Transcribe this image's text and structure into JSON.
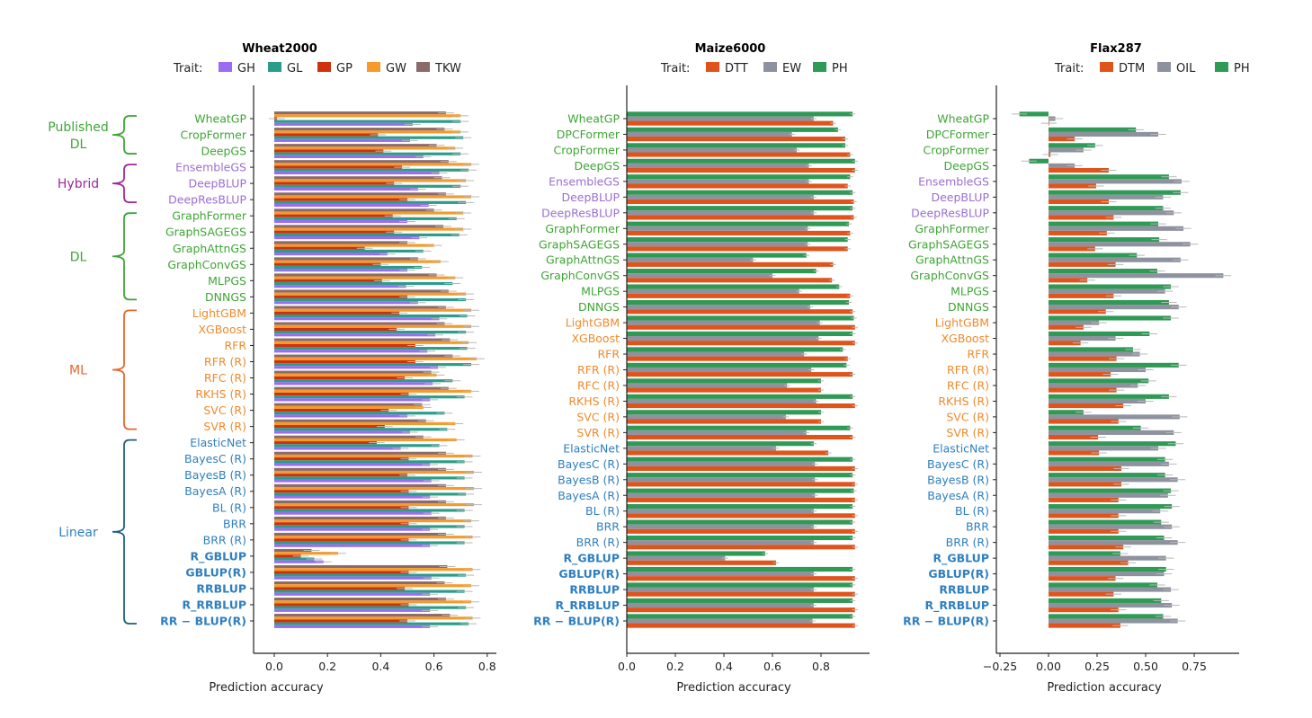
{
  "chart_data": [
    {
      "type": "bar",
      "orientation": "horizontal",
      "title": "Wheat2000",
      "legend_title": "Trait:",
      "legend_position": "top",
      "xlabel": "Prediction accuracy",
      "ylabel": "",
      "xlim": [
        -0.08,
        0.83
      ],
      "xticks": [
        0.0,
        0.2,
        0.4,
        0.6,
        0.8
      ],
      "xtick_labels": [
        "0.0",
        "0.2",
        "0.4",
        "0.6",
        "0.8"
      ],
      "grid": false,
      "categories": [
        "WheatGP",
        "CropFormer",
        "DeepGS",
        "EnsembleGS",
        "DeepBLUP",
        "DeepResBLUP",
        "GraphFormer",
        "GraphSAGEGS",
        "GraphAttnGS",
        "GraphConvGS",
        "MLPGS",
        "DNNGS",
        "LightGBM",
        "XGBoost",
        "RFR",
        "RFR (R)",
        "RFC (R)",
        "RKHS (R)",
        "SVC (R)",
        "SVR (R)",
        "ElasticNet",
        "BayesC (R)",
        "BayesB (R)",
        "BayesA (R)",
        "BL (R)",
        "BRR",
        "BRR (R)",
        "R_GBLUP",
        "GBLUP(R)",
        "RRBLUP",
        "R_RRBLUP",
        "RR − BLUP(R)"
      ],
      "category_groups": [
        "pub",
        "pub",
        "pub",
        "hyb",
        "hyb",
        "hyb",
        "dl",
        "dl",
        "dl",
        "dl",
        "dl",
        "dl",
        "ml",
        "ml",
        "ml",
        "ml",
        "ml",
        "ml",
        "ml",
        "ml",
        "lin",
        "lin",
        "lin",
        "lin",
        "lin",
        "lin",
        "lin",
        "linb",
        "linb",
        "linb",
        "linb",
        "linb"
      ],
      "series": [
        {
          "name": "GH",
          "color": "#9b6cf2",
          "values": [
            0.52,
            0.51,
            0.56,
            0.62,
            0.54,
            0.58,
            0.5,
            0.545,
            0.425,
            0.5,
            0.495,
            0.54,
            0.62,
            0.605,
            0.575,
            0.615,
            0.595,
            0.585,
            0.5,
            0.51,
            0.475,
            0.585,
            0.59,
            0.585,
            0.59,
            0.585,
            0.585,
            0.185,
            0.59,
            0.585,
            0.585,
            0.585
          ]
        },
        {
          "name": "GL",
          "color": "#2a9d8a",
          "values": [
            0.7,
            0.71,
            0.7,
            0.73,
            0.7,
            0.72,
            0.685,
            0.695,
            0.56,
            0.555,
            0.67,
            0.72,
            0.725,
            0.72,
            0.725,
            0.74,
            0.67,
            0.715,
            0.64,
            0.65,
            0.62,
            0.715,
            0.715,
            0.72,
            0.715,
            0.715,
            0.715,
            0.15,
            0.72,
            0.715,
            0.72,
            0.73
          ]
        },
        {
          "name": "GP",
          "color": "#d1300f",
          "values": [
            0.01,
            0.39,
            0.41,
            0.48,
            0.45,
            0.5,
            0.445,
            0.45,
            0.34,
            0.4,
            0.405,
            0.5,
            0.47,
            0.46,
            0.53,
            0.53,
            0.49,
            0.505,
            0.43,
            0.415,
            0.385,
            0.505,
            0.5,
            0.505,
            0.505,
            0.505,
            0.505,
            0.1,
            0.505,
            0.49,
            0.505,
            0.5
          ]
        },
        {
          "name": "GW",
          "color": "#f59a2b",
          "values": [
            0.7,
            0.7,
            0.68,
            0.74,
            0.72,
            0.74,
            0.71,
            0.71,
            0.6,
            0.625,
            0.68,
            0.72,
            0.74,
            0.74,
            0.73,
            0.76,
            0.61,
            0.74,
            0.56,
            0.68,
            0.685,
            0.745,
            0.75,
            0.75,
            0.75,
            0.74,
            0.745,
            0.24,
            0.745,
            0.74,
            0.74,
            0.745
          ]
        },
        {
          "name": "TKW",
          "color": "#8b6b6a",
          "values": [
            0.645,
            0.64,
            0.61,
            0.655,
            0.63,
            0.645,
            0.6,
            0.635,
            0.5,
            0.54,
            0.61,
            0.655,
            0.645,
            0.64,
            0.66,
            0.67,
            0.59,
            0.655,
            0.555,
            0.57,
            0.56,
            0.645,
            0.645,
            0.645,
            0.645,
            0.645,
            0.645,
            0.14,
            0.65,
            0.64,
            0.645,
            0.66
          ]
        }
      ],
      "bar_order_top_to_bottom": [
        "TKW",
        "GW",
        "GP",
        "GL",
        "GH"
      ],
      "error_bars": "small grey whiskers (~±0.03) on each bar"
    },
    {
      "type": "bar",
      "orientation": "horizontal",
      "title": "Maize6000",
      "legend_title": "Trait:",
      "legend_position": "top",
      "xlabel": "Prediction accuracy",
      "ylabel": "",
      "xlim": [
        0.0,
        1.0
      ],
      "xticks": [
        0.0,
        0.2,
        0.4,
        0.6,
        0.8
      ],
      "xtick_labels": [
        "0.0",
        "0.2",
        "0.4",
        "0.6",
        "0.8"
      ],
      "grid": false,
      "categories": [
        "WheatGP",
        "DPCFormer",
        "CropFormer",
        "DeepGS",
        "EnsembleGS",
        "DeepBLUP",
        "DeepResBLUP",
        "GraphFormer",
        "GraphSAGEGS",
        "GraphAttnGS",
        "GraphConvGS",
        "MLPGS",
        "DNNGS",
        "LightGBM",
        "XGBoost",
        "RFR",
        "RFR (R)",
        "RFC (R)",
        "RKHS (R)",
        "SVC (R)",
        "SVR (R)",
        "ElasticNet",
        "BayesC (R)",
        "BayesB (R)",
        "BayesA (R)",
        "BL (R)",
        "BRR",
        "BRR (R)",
        "R_GBLUP",
        "GBLUP(R)",
        "RRBLUP",
        "R_RRBLUP",
        "RR − BLUP(R)"
      ],
      "category_groups": [
        "pub",
        "pub",
        "pub",
        "pub",
        "hyb",
        "hyb",
        "hyb",
        "dl",
        "dl",
        "dl",
        "dl",
        "dl",
        "dl",
        "ml",
        "ml",
        "ml",
        "ml",
        "ml",
        "ml",
        "ml",
        "ml",
        "lin",
        "lin",
        "lin",
        "lin",
        "lin",
        "lin",
        "lin",
        "linb",
        "linb",
        "linb",
        "linb",
        "linb"
      ],
      "series": [
        {
          "name": "DTT",
          "color": "#e0531b",
          "values": [
            0.85,
            0.9,
            0.92,
            0.94,
            0.91,
            0.935,
            0.935,
            0.92,
            0.91,
            0.85,
            0.845,
            0.92,
            0.93,
            0.94,
            0.94,
            0.91,
            0.93,
            0.8,
            0.94,
            0.8,
            0.93,
            0.83,
            0.94,
            0.94,
            0.94,
            0.94,
            0.94,
            0.94,
            0.615,
            0.94,
            0.94,
            0.94,
            0.94
          ]
        },
        {
          "name": "EW",
          "color": "#8e929e",
          "values": [
            0.77,
            0.68,
            0.7,
            0.75,
            0.75,
            0.77,
            0.77,
            0.745,
            0.745,
            0.52,
            0.6,
            0.71,
            0.755,
            0.795,
            0.79,
            0.73,
            0.76,
            0.66,
            0.78,
            0.655,
            0.74,
            0.615,
            0.775,
            0.775,
            0.775,
            0.77,
            0.77,
            0.77,
            0.405,
            0.77,
            0.77,
            0.77,
            0.765
          ]
        },
        {
          "name": "PH",
          "color": "#2e9a55",
          "values": [
            0.93,
            0.87,
            0.9,
            0.94,
            0.92,
            0.93,
            0.93,
            0.915,
            0.91,
            0.74,
            0.78,
            0.875,
            0.915,
            0.935,
            0.93,
            0.89,
            0.905,
            0.8,
            0.93,
            0.8,
            0.92,
            0.77,
            0.93,
            0.93,
            0.935,
            0.93,
            0.93,
            0.93,
            0.57,
            0.93,
            0.93,
            0.93,
            0.93
          ]
        }
      ],
      "bar_order_top_to_bottom": [
        "PH",
        "EW",
        "DTT"
      ],
      "error_bars": "small grey whiskers (~±0.01) on each bar"
    },
    {
      "type": "bar",
      "orientation": "horizontal",
      "title": "Flax287",
      "legend_title": "Trait:",
      "legend_position": "top",
      "xlabel": "Prediction accuracy",
      "ylabel": "",
      "xlim": [
        -0.27,
        0.98
      ],
      "xticks": [
        -0.25,
        0.0,
        0.25,
        0.5,
        0.75
      ],
      "xtick_labels": [
        "−0.25",
        "0.00",
        "0.25",
        "0.50",
        "0.75"
      ],
      "grid": false,
      "categories": [
        "WheatGP",
        "DPCFormer",
        "CropFormer",
        "DeepGS",
        "EnsembleGS",
        "DeepBLUP",
        "DeepResBLUP",
        "GraphFormer",
        "GraphSAGEGS",
        "GraphAttnGS",
        "GraphConvGS",
        "MLPGS",
        "DNNGS",
        "LightGBM",
        "XGBoost",
        "RFR",
        "RFR (R)",
        "RFC (R)",
        "RKHS (R)",
        "SVC (R)",
        "SVR (R)",
        "ElasticNet",
        "BayesC (R)",
        "BayesB (R)",
        "BayesA (R)",
        "BL (R)",
        "BRR",
        "BRR (R)",
        "R_GBLUP",
        "GBLUP(R)",
        "RRBLUP",
        "R_RRBLUP",
        "RR − BLUP(R)"
      ],
      "category_groups": [
        "pub",
        "pub",
        "pub",
        "pub",
        "hyb",
        "hyb",
        "hyb",
        "dl",
        "dl",
        "dl",
        "dl",
        "dl",
        "dl",
        "ml",
        "ml",
        "ml",
        "ml",
        "ml",
        "ml",
        "ml",
        "ml",
        "lin",
        "lin",
        "lin",
        "lin",
        "lin",
        "lin",
        "lin",
        "linb",
        "linb",
        "linb",
        "linb",
        "linb"
      ],
      "series": [
        {
          "name": "DTM",
          "color": "#e0531b",
          "values": [
            0.002,
            0.135,
            0.01,
            0.31,
            0.245,
            0.31,
            0.335,
            0.3,
            0.24,
            0.345,
            0.2,
            0.335,
            0.295,
            0.18,
            0.165,
            0.35,
            0.32,
            0.35,
            0.385,
            0.36,
            0.255,
            0.26,
            0.375,
            0.375,
            0.36,
            0.36,
            0.36,
            0.385,
            0.41,
            0.345,
            0.335,
            0.36,
            0.37
          ]
        },
        {
          "name": "OIL",
          "color": "#8e929e",
          "values": [
            0.035,
            0.565,
            0.18,
            0.135,
            0.685,
            0.59,
            0.645,
            0.695,
            0.73,
            0.68,
            0.9,
            0.6,
            0.67,
            0.26,
            0.345,
            0.47,
            0.5,
            0.46,
            0.5,
            0.675,
            0.645,
            0.565,
            0.62,
            0.665,
            0.615,
            0.575,
            0.635,
            0.665,
            0.605,
            0.595,
            0.63,
            0.635,
            0.665
          ]
        },
        {
          "name": "PH",
          "color": "#2e9a55",
          "values": [
            -0.15,
            0.45,
            0.24,
            -0.1,
            0.62,
            0.68,
            0.59,
            0.565,
            0.57,
            0.455,
            0.56,
            0.63,
            0.62,
            0.63,
            0.52,
            0.435,
            0.67,
            0.515,
            0.62,
            0.18,
            0.475,
            0.655,
            0.6,
            0.6,
            0.63,
            0.635,
            0.58,
            0.595,
            0.37,
            0.605,
            0.56,
            0.58,
            0.59
          ]
        }
      ],
      "bar_order_top_to_bottom": [
        "PH",
        "OIL",
        "DTM"
      ],
      "error_bars": "small grey whiskers (~±0.04) on each bar"
    }
  ],
  "groups": {
    "pub": {
      "color": "#3fa535",
      "bold": false
    },
    "hyb": {
      "color": "#9a6fd0",
      "bold": false
    },
    "dl": {
      "color": "#3fa535",
      "bold": false
    },
    "ml": {
      "color": "#f08a2c",
      "bold": false
    },
    "lin": {
      "color": "#2f7fbf",
      "bold": false
    },
    "linb": {
      "color": "#2f7fbf",
      "bold": true
    }
  },
  "brackets": [
    {
      "label": [
        "Published",
        "DL"
      ],
      "color": "#3fa535",
      "from": "WheatGP",
      "to": "DeepGS"
    },
    {
      "label": [
        "Hybrid"
      ],
      "color": "#a0279a",
      "from": "EnsembleGS",
      "to": "DeepResBLUP"
    },
    {
      "label": [
        "DL"
      ],
      "color": "#3fa535",
      "from": "GraphFormer",
      "to": "DNNGS"
    },
    {
      "label": [
        "ML"
      ],
      "color": "#e8662a",
      "from": "LightGBM",
      "to": "SVR (R)"
    },
    {
      "label": [
        "Linear"
      ],
      "color": "#1f5f7f",
      "label_color": "#2f7fbf",
      "from": "ElasticNet",
      "to": "RR − BLUP(R)"
    }
  ],
  "errorbar_color": "#b8b8b8"
}
